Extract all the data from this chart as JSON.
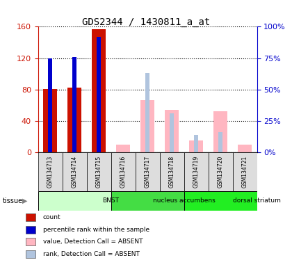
{
  "title": "GDS2344 / 1430811_a_at",
  "samples": [
    "GSM134713",
    "GSM134714",
    "GSM134715",
    "GSM134716",
    "GSM134717",
    "GSM134718",
    "GSM134719",
    "GSM134720",
    "GSM134721"
  ],
  "count_values": [
    81,
    82,
    157,
    0,
    0,
    0,
    0,
    0,
    0
  ],
  "percentile_rank_values": [
    75,
    76,
    92,
    0,
    0,
    0,
    0,
    0,
    0
  ],
  "absent_value": [
    0,
    0,
    0,
    10,
    66,
    54,
    15,
    52,
    10
  ],
  "absent_rank": [
    0,
    0,
    0,
    0,
    63,
    31,
    14,
    16,
    0
  ],
  "ylim_left": [
    0,
    160
  ],
  "ylim_right": [
    0,
    100
  ],
  "yticks_left": [
    0,
    40,
    80,
    120,
    160
  ],
  "yticks_right": [
    0,
    25,
    50,
    75,
    100
  ],
  "ytick_right_labels": [
    "0%",
    "25%",
    "50%",
    "75%",
    "100%"
  ],
  "color_count": "#CC1100",
  "color_rank": "#0000CC",
  "color_absent_value": "#FFB6C1",
  "color_absent_rank": "#B0C4DE",
  "tissue_data": [
    {
      "name": "BNST",
      "start": 0,
      "end": 3,
      "color": "#CCFFCC"
    },
    {
      "name": "nucleus accumbens",
      "start": 3,
      "end": 6,
      "color": "#44DD44"
    },
    {
      "name": "dorsal striatum",
      "start": 6,
      "end": 9,
      "color": "#22EE22"
    }
  ],
  "legend_items": [
    {
      "color": "#CC1100",
      "label": "count"
    },
    {
      "color": "#0000CC",
      "label": "percentile rank within the sample"
    },
    {
      "color": "#FFB6C1",
      "label": "value, Detection Call = ABSENT"
    },
    {
      "color": "#B0C4DE",
      "label": "rank, Detection Call = ABSENT"
    }
  ]
}
